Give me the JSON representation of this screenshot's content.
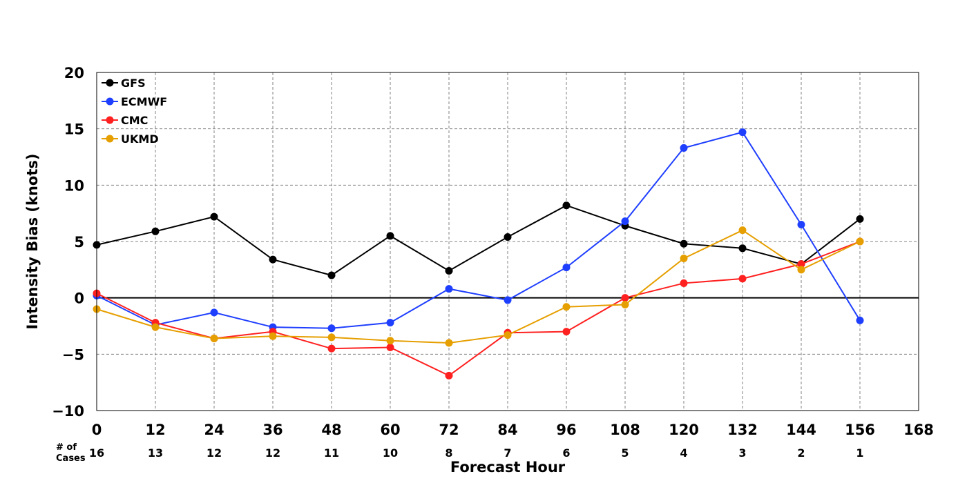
{
  "chart_data": {
    "type": "line",
    "title": "",
    "xlabel": "Forecast Hour",
    "ylabel": "Intensity Bias (knots)",
    "xlim": [
      0,
      168
    ],
    "ylim": [
      -10,
      20
    ],
    "xticks": [
      0,
      12,
      24,
      36,
      48,
      60,
      72,
      84,
      96,
      108,
      120,
      132,
      144,
      156,
      168
    ],
    "xtick_labels": [
      "0",
      "12",
      "24",
      "36",
      "48",
      "60",
      "72",
      "84",
      "96",
      "108",
      "120",
      "132",
      "144",
      "156",
      "168"
    ],
    "yticks": [
      -10,
      -5,
      0,
      5,
      10,
      15,
      20
    ],
    "ytick_labels": [
      "−10",
      "−5",
      "0",
      "5",
      "10",
      "15",
      "20"
    ],
    "grid": true,
    "zero_line": true,
    "legend_position": "top-left",
    "cases_title_line1": "# of",
    "cases_title_line2": "Cases",
    "cases": [
      {
        "x": 0,
        "label": "16"
      },
      {
        "x": 12,
        "label": "13"
      },
      {
        "x": 24,
        "label": "12"
      },
      {
        "x": 36,
        "label": "12"
      },
      {
        "x": 48,
        "label": "11"
      },
      {
        "x": 60,
        "label": "10"
      },
      {
        "x": 72,
        "label": "8"
      },
      {
        "x": 84,
        "label": "7"
      },
      {
        "x": 96,
        "label": "6"
      },
      {
        "x": 108,
        "label": "5"
      },
      {
        "x": 120,
        "label": "4"
      },
      {
        "x": 132,
        "label": "3"
      },
      {
        "x": 144,
        "label": "2"
      },
      {
        "x": 156,
        "label": "1"
      }
    ],
    "x": [
      0,
      12,
      24,
      36,
      48,
      60,
      72,
      84,
      96,
      108,
      120,
      132,
      144,
      156
    ],
    "series": [
      {
        "name": "GFS",
        "color": "#000000",
        "values": [
          4.7,
          5.9,
          7.2,
          3.4,
          2.0,
          5.5,
          2.4,
          5.4,
          8.2,
          6.4,
          4.8,
          4.4,
          3.0,
          7.0
        ]
      },
      {
        "name": "ECMWF",
        "color": "#1f3fff",
        "values": [
          0.2,
          -2.4,
          -1.3,
          -2.6,
          -2.7,
          -2.2,
          0.8,
          -0.2,
          2.7,
          6.8,
          13.3,
          14.7,
          6.5,
          -2.0
        ]
      },
      {
        "name": "CMC",
        "color": "#ff2020",
        "values": [
          0.4,
          -2.2,
          -3.6,
          -3.0,
          -4.5,
          -4.4,
          -6.9,
          -3.1,
          -3.0,
          0.0,
          1.3,
          1.7,
          3.0,
          5.0
        ]
      },
      {
        "name": "UKMD",
        "color": "#e69f00",
        "values": [
          -1.0,
          -2.6,
          -3.6,
          -3.4,
          -3.5,
          -3.8,
          -4.0,
          -3.3,
          -0.8,
          -0.6,
          3.5,
          6.0,
          2.5,
          5.0
        ]
      }
    ]
  }
}
